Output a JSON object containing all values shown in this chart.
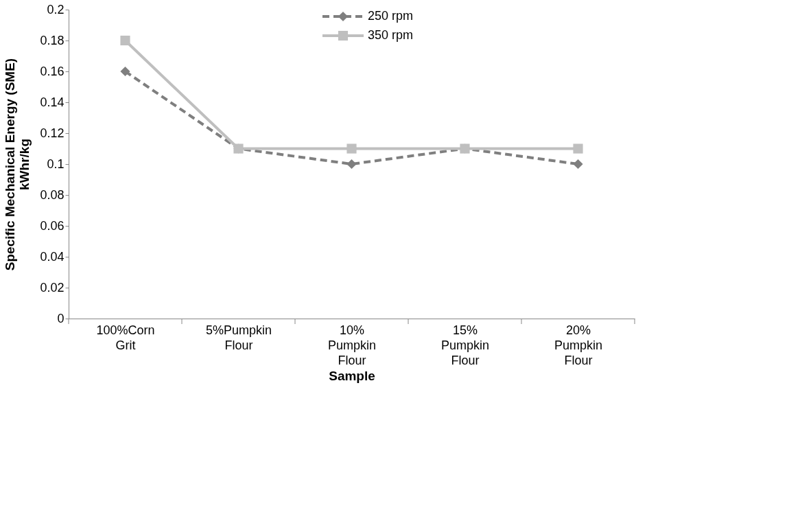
{
  "chart_data": {
    "type": "line",
    "xlabel": "Sample",
    "ylabel": "Specific Mechanical Energy (SME) kWhr/kg",
    "categories": [
      "100%Corn Grit",
      "5%Pumpkin Flour",
      "10% Pumpkin Flour",
      "15% Pumpkin Flour",
      "20% Pumpkin Flour"
    ],
    "series": [
      {
        "name": "250 rpm",
        "color": "#7f7f7f",
        "marker": "diamond",
        "line_style": "dashed",
        "values": [
          0.16,
          0.11,
          0.1,
          0.11,
          0.1
        ]
      },
      {
        "name": "350 rpm",
        "color": "#bfbfbf",
        "marker": "square",
        "line_style": "solid",
        "values": [
          0.18,
          0.11,
          0.11,
          0.11,
          0.11
        ]
      }
    ],
    "ylim": [
      0,
      0.2
    ],
    "yticks": [
      0,
      0.02,
      0.04,
      0.06,
      0.08,
      0.1,
      0.12,
      0.14,
      0.16,
      0.18,
      0.2
    ],
    "grid": false,
    "legend": "top"
  }
}
